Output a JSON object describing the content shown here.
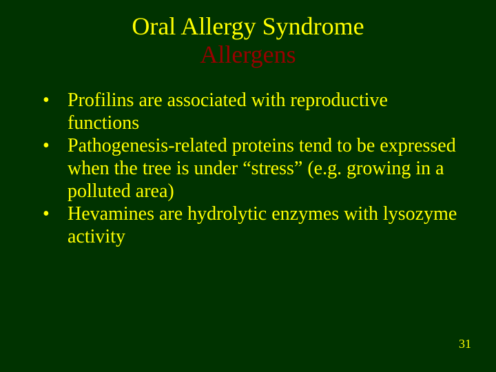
{
  "title": {
    "line1": "Oral Allergy Syndrome",
    "line2": "Allergens",
    "line1_color": "#ffff00",
    "line2_color": "#990000",
    "fontsize": 36
  },
  "bullets": [
    {
      "text": "Profilins are associated with reproductive functions"
    },
    {
      "text": "Pathogenesis-related proteins tend to be expressed when the tree is under “stress” (e.g. growing in a polluted area)"
    },
    {
      "text": "Hevamines are hydrolytic enzymes with lysozyme activity"
    }
  ],
  "bullet_style": {
    "marker": "•",
    "color": "#ffff00",
    "fontsize": 28
  },
  "page_number": "31",
  "background_color": "#003300"
}
